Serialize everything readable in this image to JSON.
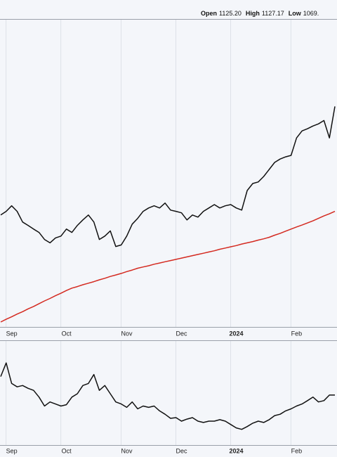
{
  "header": {
    "open_label": "Open",
    "open": "1125.20",
    "high_label": "High",
    "high": "1127.17",
    "low_label": "Low",
    "low": "1069."
  },
  "chart_data": [
    {
      "type": "line",
      "categories": [
        null,
        null,
        "Sep",
        null,
        null,
        null,
        null,
        null,
        null,
        null,
        null,
        null,
        "Oct",
        null,
        null,
        null,
        null,
        null,
        null,
        null,
        null,
        null,
        null,
        "Nov",
        null,
        null,
        null,
        null,
        null,
        null,
        null,
        null,
        null,
        "Dec",
        null,
        null,
        null,
        null,
        null,
        null,
        null,
        null,
        null,
        "2024",
        null,
        null,
        null,
        null,
        null,
        null,
        null,
        null,
        null,
        null,
        "Feb",
        null,
        null,
        null,
        null,
        null,
        null,
        null
      ],
      "ylim": [
        0,
        100
      ],
      "series": [
        {
          "color": "#111111",
          "values": [
            36.6,
            37.8,
            39.6,
            37.8,
            34.3,
            33.2,
            32.0,
            30.9,
            28.6,
            27.5,
            29.1,
            29.7,
            32.0,
            30.9,
            33.2,
            35.0,
            36.6,
            34.3,
            28.6,
            29.7,
            31.4,
            26.3,
            26.8,
            29.7,
            33.6,
            35.5,
            37.8,
            38.9,
            39.6,
            38.9,
            40.5,
            38.2,
            37.8,
            37.3,
            35.0,
            36.6,
            35.9,
            37.8,
            38.9,
            40.0,
            38.9,
            39.6,
            40.0,
            38.9,
            38.2,
            44.6,
            46.9,
            47.4,
            49.2,
            51.5,
            53.8,
            54.9,
            55.6,
            56.1,
            61.8,
            64.1,
            64.8,
            65.7,
            66.4,
            67.5,
            61.8,
            72.1
          ]
        },
        {
          "color": "#d42a20",
          "values": [
            1.6,
            2.5,
            3.3,
            4.2,
            5.0,
            5.9,
            6.7,
            7.6,
            8.5,
            9.3,
            10.2,
            11.0,
            11.9,
            12.7,
            13.2,
            13.8,
            14.3,
            14.8,
            15.4,
            15.9,
            16.5,
            17.0,
            17.5,
            18.1,
            18.6,
            19.2,
            19.6,
            20.0,
            20.5,
            20.9,
            21.3,
            21.7,
            22.1,
            22.5,
            22.9,
            23.3,
            23.7,
            24.1,
            24.5,
            24.9,
            25.4,
            25.8,
            26.2,
            26.6,
            27.1,
            27.5,
            27.9,
            28.4,
            28.8,
            29.3,
            30.0,
            30.6,
            31.3,
            32.0,
            32.7,
            33.3,
            34.0,
            34.7,
            35.5,
            36.3,
            37.0,
            37.8
          ]
        }
      ]
    },
    {
      "type": "line",
      "categories": [
        null,
        null,
        "Sep",
        null,
        null,
        null,
        null,
        null,
        null,
        null,
        null,
        null,
        "Oct",
        null,
        null,
        null,
        null,
        null,
        null,
        null,
        null,
        null,
        null,
        "Nov",
        null,
        null,
        null,
        null,
        null,
        null,
        null,
        null,
        null,
        "Dec",
        null,
        null,
        null,
        null,
        null,
        null,
        null,
        null,
        null,
        "2024",
        null,
        null,
        null,
        null,
        null,
        null,
        null,
        null,
        null,
        null,
        "Feb",
        null,
        null,
        null,
        null,
        null,
        null,
        null
      ],
      "ylim": [
        0,
        100
      ],
      "series": [
        {
          "color": "#111111",
          "values": [
            66.7,
            80.0,
            60.0,
            56.7,
            58.0,
            55.3,
            53.3,
            46.7,
            38.0,
            42.0,
            40.0,
            38.0,
            39.3,
            46.7,
            50.0,
            58.0,
            60.0,
            68.7,
            53.3,
            58.0,
            50.0,
            42.0,
            40.0,
            36.7,
            42.0,
            35.3,
            38.0,
            36.7,
            38.0,
            33.3,
            30.0,
            26.0,
            26.7,
            23.3,
            25.3,
            26.7,
            23.3,
            22.0,
            23.3,
            23.3,
            24.7,
            23.3,
            20.0,
            16.7,
            15.3,
            18.0,
            21.3,
            23.3,
            22.0,
            24.7,
            28.7,
            30.0,
            33.3,
            35.3,
            38.0,
            40.0,
            43.3,
            46.7,
            42.0,
            43.3,
            48.7,
            48.7
          ]
        }
      ]
    }
  ]
}
